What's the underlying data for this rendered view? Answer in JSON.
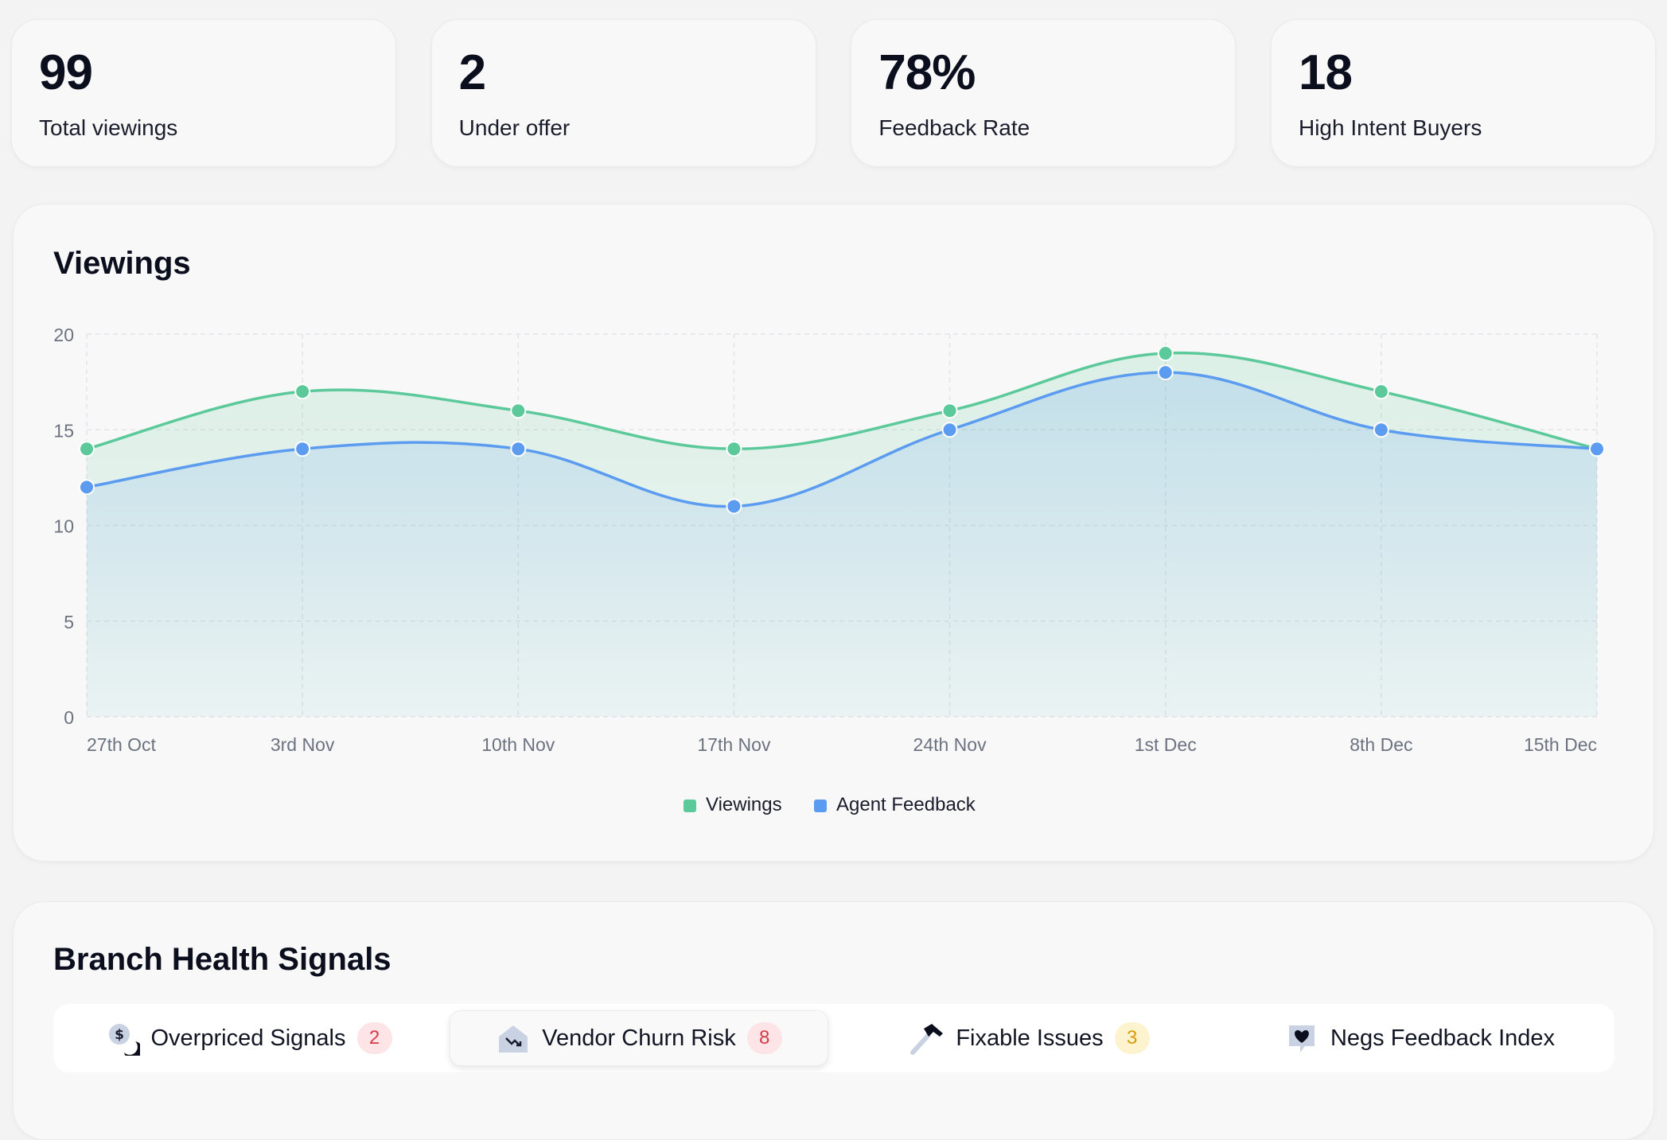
{
  "stats": [
    {
      "value": "99",
      "label": "Total viewings"
    },
    {
      "value": "2",
      "label": "Under offer"
    },
    {
      "value": "78%",
      "label": "Feedback Rate"
    },
    {
      "value": "18",
      "label": "High Intent Buyers"
    }
  ],
  "viewings_panel": {
    "title": "Viewings"
  },
  "chart_data": {
    "type": "area",
    "title": "Viewings",
    "categories": [
      "27th Oct",
      "3rd Nov",
      "10th Nov",
      "17th Nov",
      "24th Nov",
      "1st Dec",
      "8th Dec",
      "15th Dec"
    ],
    "series": [
      {
        "name": "Viewings",
        "color": "#5cc99a",
        "values": [
          14,
          17,
          16,
          14,
          16,
          19,
          17,
          14
        ]
      },
      {
        "name": "Agent Feedback",
        "color": "#5b9bf0",
        "values": [
          12,
          14,
          14,
          11,
          15,
          18,
          15,
          14
        ]
      }
    ],
    "yticks": [
      "0",
      "5",
      "10",
      "15",
      "20"
    ],
    "ylim": [
      0,
      20
    ],
    "xlabel": "",
    "ylabel": "",
    "grid": true,
    "legend": "bottom-center"
  },
  "signals_panel": {
    "title": "Branch Health Signals",
    "tabs": [
      {
        "label": "Overpriced Signals",
        "icon": "dollar-moon-icon",
        "badge": "2",
        "badge_color": "red",
        "active": false
      },
      {
        "label": "Vendor Churn Risk",
        "icon": "house-trend-down-icon",
        "badge": "8",
        "badge_color": "red",
        "active": true
      },
      {
        "label": "Fixable Issues",
        "icon": "hammer-icon",
        "badge": "3",
        "badge_color": "yellow",
        "active": false
      },
      {
        "label": "Negs Feedback Index",
        "icon": "heart-chat-icon",
        "badge": "",
        "badge_color": "",
        "active": false
      }
    ]
  }
}
